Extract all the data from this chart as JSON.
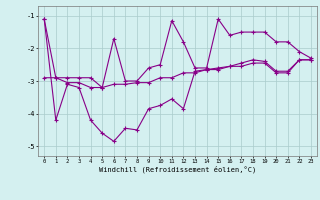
{
  "xlabel": "Windchill (Refroidissement éolien,°C)",
  "bg_color": "#d4f0f0",
  "grid_color": "#aacccc",
  "line_color": "#880088",
  "xlim": [
    -0.5,
    23.5
  ],
  "ylim": [
    -5.3,
    -0.7
  ],
  "yticks": [
    -5,
    -4,
    -3,
    -2,
    -1
  ],
  "xticks": [
    0,
    1,
    2,
    3,
    4,
    5,
    6,
    7,
    8,
    9,
    10,
    11,
    12,
    13,
    14,
    15,
    16,
    17,
    18,
    19,
    20,
    21,
    22,
    23
  ],
  "line1_x": [
    0,
    1,
    2,
    3,
    4,
    5,
    6,
    7,
    8,
    9,
    10,
    11,
    12,
    13,
    14,
    15,
    16,
    17,
    18,
    19,
    20,
    21,
    22,
    23
  ],
  "line1_y": [
    -1.1,
    -2.9,
    -2.9,
    -2.9,
    -2.9,
    -3.2,
    -1.7,
    -3.0,
    -3.0,
    -2.6,
    -2.5,
    -1.15,
    -1.8,
    -2.6,
    -2.6,
    -1.1,
    -1.6,
    -1.5,
    -1.5,
    -1.5,
    -1.8,
    -1.8,
    -2.1,
    -2.3
  ],
  "line2_x": [
    0,
    1,
    2,
    3,
    4,
    5,
    6,
    7,
    8,
    9,
    10,
    11,
    12,
    13,
    14,
    15,
    16,
    17,
    18,
    19,
    20,
    21,
    22,
    23
  ],
  "line2_y": [
    -2.9,
    -2.9,
    -3.05,
    -3.05,
    -3.2,
    -3.2,
    -3.1,
    -3.1,
    -3.05,
    -3.05,
    -2.9,
    -2.9,
    -2.75,
    -2.75,
    -2.65,
    -2.65,
    -2.55,
    -2.55,
    -2.45,
    -2.45,
    -2.75,
    -2.75,
    -2.35,
    -2.35
  ],
  "line3_x": [
    0,
    1,
    2,
    3,
    4,
    5,
    6,
    7,
    8,
    9,
    10,
    11,
    12,
    13,
    14,
    15,
    16,
    17,
    18,
    19,
    20,
    21,
    22,
    23
  ],
  "line3_y": [
    -1.1,
    -4.2,
    -3.1,
    -3.2,
    -4.2,
    -4.6,
    -4.85,
    -4.45,
    -4.5,
    -3.85,
    -3.75,
    -3.55,
    -3.85,
    -2.7,
    -2.65,
    -2.6,
    -2.55,
    -2.45,
    -2.35,
    -2.4,
    -2.7,
    -2.7,
    -2.35,
    -2.35
  ]
}
